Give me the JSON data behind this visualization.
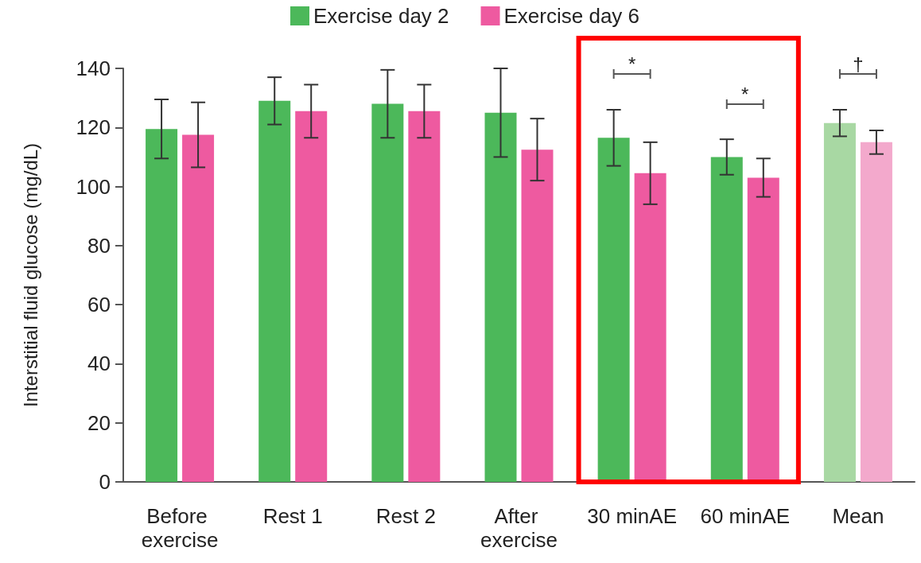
{
  "chart_data": {
    "type": "bar",
    "ylabel": "Interstitial fluid glucose (mg/dL)",
    "categories": [
      "Before exercise",
      "Rest 1",
      "Rest 2",
      "After exercise",
      "30 minAE",
      "60 minAE",
      "Mean"
    ],
    "series": [
      {
        "name": "Exercise day 2",
        "color": "#4cb85a",
        "colors": [
          "#4cb85a",
          "#4cb85a",
          "#4cb85a",
          "#4cb85a",
          "#4cb85a",
          "#4cb85a",
          "#a8d8a3"
        ],
        "values": [
          119.5,
          129,
          128,
          125,
          116.5,
          110,
          121.5
        ],
        "errors": [
          10,
          8,
          11.5,
          15,
          9.5,
          6,
          4.5
        ]
      },
      {
        "name": "Exercise day 6",
        "color": "#ee5aa0",
        "colors": [
          "#ee5aa0",
          "#ee5aa0",
          "#ee5aa0",
          "#ee5aa0",
          "#ee5aa0",
          "#ee5aa0",
          "#f3a9cc"
        ],
        "values": [
          117.5,
          125.5,
          125.5,
          112.5,
          104.5,
          103,
          115
        ],
        "errors": [
          11,
          9,
          9,
          10.5,
          10.5,
          6.5,
          4
        ]
      }
    ],
    "ylim": [
      0,
      140
    ],
    "yticks": [
      0,
      20,
      40,
      60,
      80,
      100,
      120,
      140
    ],
    "grid": false,
    "legend": "top",
    "annotations": [
      "*",
      "*",
      "†"
    ]
  }
}
